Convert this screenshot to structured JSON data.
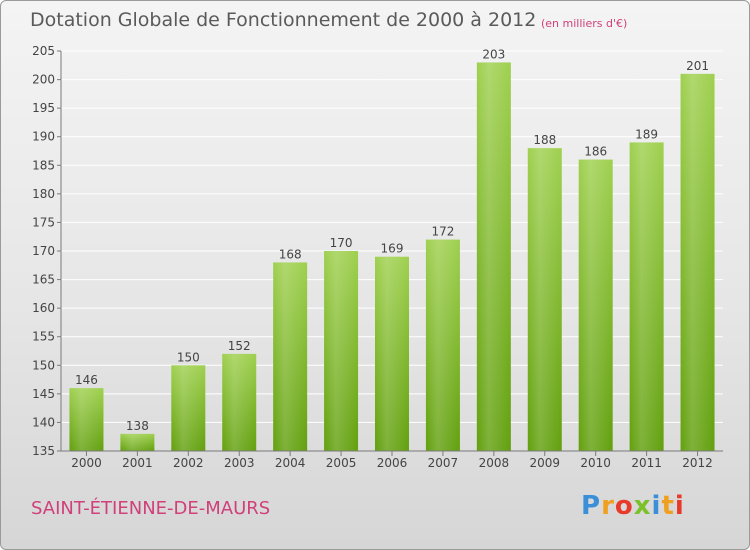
{
  "header": {
    "title": "Dotation Globale de Fonctionnement de 2000 à 2012",
    "unit_note": "(en milliers d'€)"
  },
  "footer": {
    "commune": "SAINT-ÉTIENNE-DE-MAURS",
    "logo_text": "Proxiti"
  },
  "colors": {
    "bar_top": "#9fd04f",
    "bar_bottom": "#62a00e",
    "axis": "#7a7a7a",
    "grid": "#ffffff",
    "label": "#444444",
    "accent": "#d0407a"
  },
  "chart_data": {
    "type": "bar",
    "title": "Dotation Globale de Fonctionnement de 2000 à 2012",
    "subtitle": "(en milliers d'€)",
    "xlabel": "",
    "ylabel": "",
    "categories": [
      "2000",
      "2001",
      "2002",
      "2003",
      "2004",
      "2005",
      "2006",
      "2007",
      "2008",
      "2009",
      "2010",
      "2011",
      "2012"
    ],
    "values": [
      146,
      138,
      150,
      152,
      168,
      170,
      169,
      172,
      203,
      188,
      186,
      189,
      201
    ],
    "ylim": [
      135,
      205
    ],
    "yticks": [
      135,
      140,
      145,
      150,
      155,
      160,
      165,
      170,
      175,
      180,
      185,
      190,
      195,
      200,
      205
    ],
    "grid": true,
    "data_labels": true
  }
}
